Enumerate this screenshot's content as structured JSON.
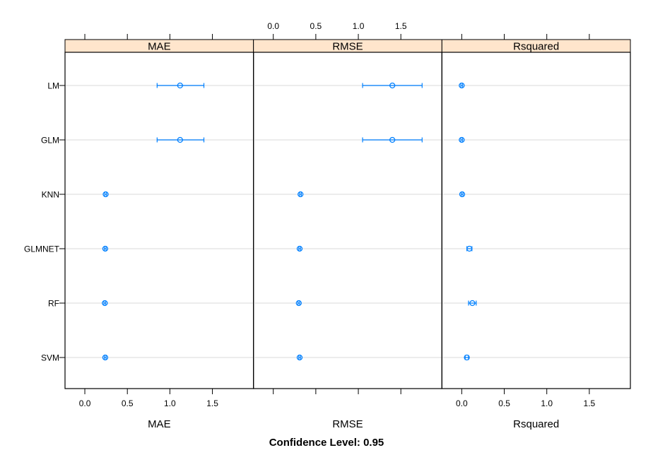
{
  "chart_data": {
    "type": "dotplot-errorbar",
    "categories": [
      "LM",
      "GLM",
      "KNN",
      "GLMNET",
      "RF",
      "SVM"
    ],
    "xlim": [
      -0.1,
      1.85
    ],
    "ticks": [
      "0.0",
      "0.5",
      "1.0",
      "1.5"
    ],
    "tick_values": [
      0,
      0.5,
      1,
      1.5
    ],
    "panels": [
      {
        "name": "MAE",
        "axis_title": "MAE",
        "tick_labels_side": "bottom",
        "series": [
          {
            "category": "LM",
            "value": 1.12,
            "lower": 0.85,
            "upper": 1.4
          },
          {
            "category": "GLM",
            "value": 1.12,
            "lower": 0.85,
            "upper": 1.4
          },
          {
            "category": "KNN",
            "value": 0.245,
            "lower": 0.235,
            "upper": 0.255
          },
          {
            "category": "GLMNET",
            "value": 0.24,
            "lower": 0.23,
            "upper": 0.25
          },
          {
            "category": "RF",
            "value": 0.235,
            "lower": 0.225,
            "upper": 0.245
          },
          {
            "category": "SVM",
            "value": 0.24,
            "lower": 0.23,
            "upper": 0.25
          }
        ]
      },
      {
        "name": "RMSE",
        "axis_title": "RMSE",
        "tick_labels_side": "top",
        "series": [
          {
            "category": "LM",
            "value": 1.4,
            "lower": 1.05,
            "upper": 1.75
          },
          {
            "category": "GLM",
            "value": 1.4,
            "lower": 1.05,
            "upper": 1.75
          },
          {
            "category": "KNN",
            "value": 0.32,
            "lower": 0.31,
            "upper": 0.33
          },
          {
            "category": "GLMNET",
            "value": 0.31,
            "lower": 0.3,
            "upper": 0.32
          },
          {
            "category": "RF",
            "value": 0.3,
            "lower": 0.29,
            "upper": 0.31
          },
          {
            "category": "SVM",
            "value": 0.31,
            "lower": 0.3,
            "upper": 0.32
          }
        ]
      },
      {
        "name": "Rsquared",
        "axis_title": "Rsquared",
        "tick_labels_side": "bottom",
        "series": [
          {
            "category": "LM",
            "value": 0.0,
            "lower": -0.01,
            "upper": 0.01
          },
          {
            "category": "GLM",
            "value": 0.0,
            "lower": -0.01,
            "upper": 0.01
          },
          {
            "category": "KNN",
            "value": 0.005,
            "lower": -0.005,
            "upper": 0.015
          },
          {
            "category": "GLMNET",
            "value": 0.09,
            "lower": 0.06,
            "upper": 0.12
          },
          {
            "category": "RF",
            "value": 0.125,
            "lower": 0.08,
            "upper": 0.17
          },
          {
            "category": "SVM",
            "value": 0.06,
            "lower": 0.04,
            "upper": 0.08
          }
        ]
      }
    ],
    "footer": "Confidence Level: 0.95",
    "colors": {
      "strip_fill": "#ffe5cc",
      "point": "#0080ff",
      "reference_line": "#e6e6e6",
      "frame": "#000000"
    }
  }
}
